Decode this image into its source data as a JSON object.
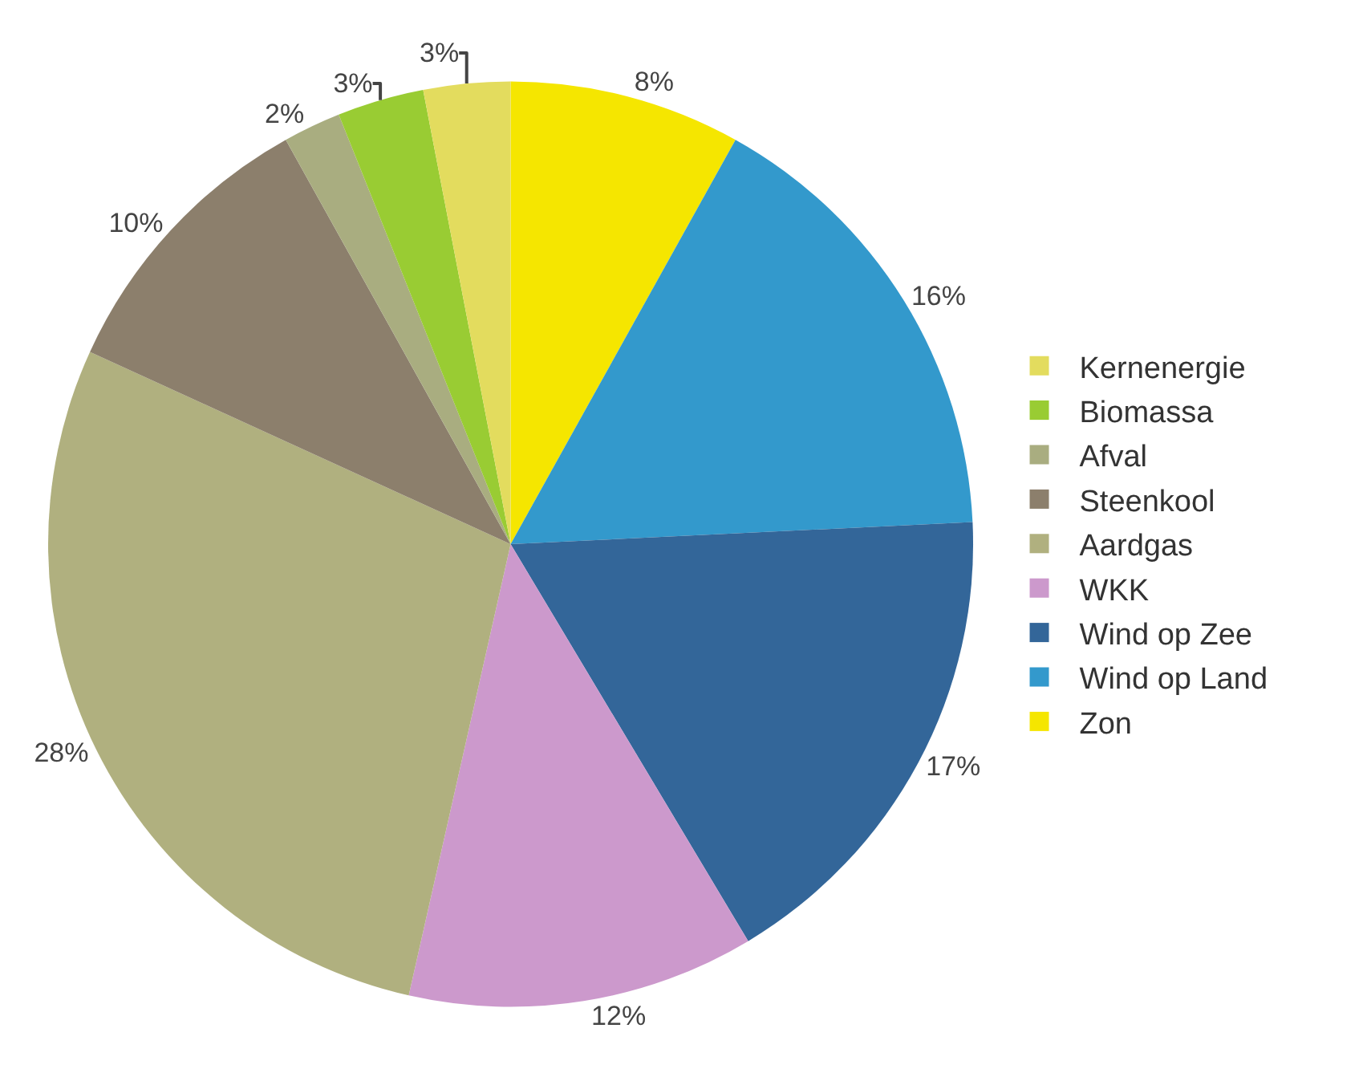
{
  "chart_data": {
    "type": "pie",
    "categories": [
      "Zon",
      "Wind op Land",
      "Wind op Zee",
      "WKK",
      "Aardgas",
      "Steenkool",
      "Afval",
      "Biomassa",
      "Kernenergie"
    ],
    "values": [
      8,
      16,
      17,
      12,
      28,
      10,
      2,
      3,
      3
    ],
    "value_labels": [
      "8%",
      "16%",
      "17%",
      "12%",
      "28%",
      "10%",
      "2%",
      "3%",
      "3%"
    ],
    "colors": [
      "#f5e600",
      "#3399cc",
      "#336699",
      "#cc99cc",
      "#b0b07f",
      "#8c7f6c",
      "#a9ad80",
      "#99cc33",
      "#e3dc5e"
    ],
    "legend": "right"
  }
}
